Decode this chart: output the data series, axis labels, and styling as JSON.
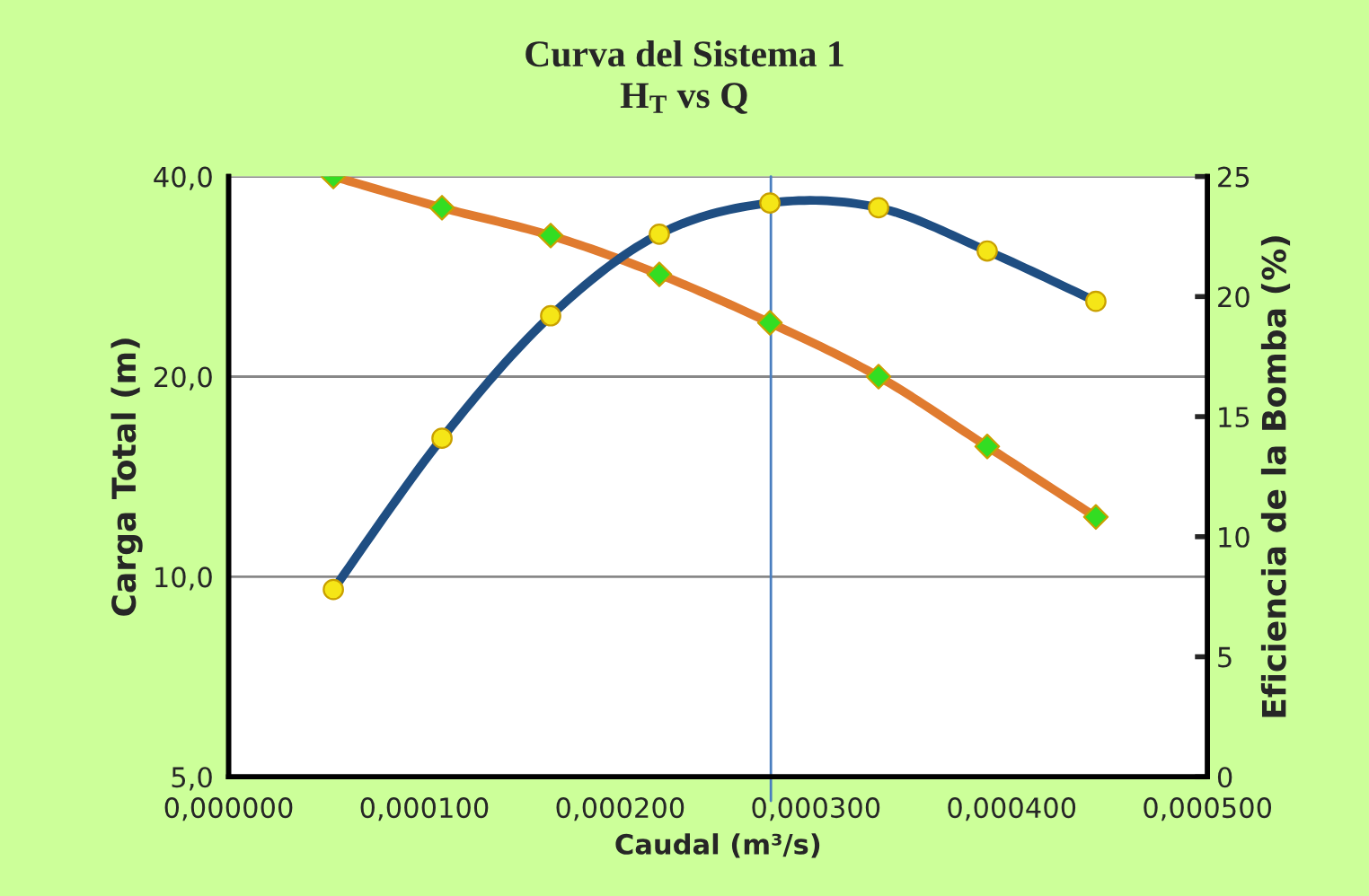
{
  "chart_data": {
    "type": "line",
    "title": "Curva del Sistema 1\nH$_{T}$ vs Q",
    "xlabel": "Caudal (m³/s)",
    "ylabel": "Carga Total (m)",
    "y2label": "Eficiencia de la Bomba (%)",
    "x": [
      5.35e-05,
      0.000109,
      0.0001645,
      0.00022,
      0.0002765,
      0.000332,
      0.0003875,
      0.000443
    ],
    "series": [
      {
        "color": "#e07b2f",
        "marker": "diamond",
        "values": [
          40.0,
          35.9,
          32.6,
          28.5,
          24.1,
          20.0,
          15.7,
          12.3
        ]
      },
      {
        "color": "#1f4e82",
        "marker": "circle",
        "axis": "y2",
        "values": [
          7.8,
          14.1,
          19.2,
          22.6,
          23.9,
          23.7,
          21.9,
          19.8
        ]
      }
    ],
    "xlim": [
      0,
      0.0005
    ],
    "xticks": [
      {
        "value": 0,
        "label": "0,000000"
      },
      {
        "value": 0.0001,
        "label": "0,000100"
      },
      {
        "value": 0.0002,
        "label": "0,000200"
      },
      {
        "value": 0.0003,
        "label": "0,000300"
      },
      {
        "value": 0.0004,
        "label": "0,000400"
      },
      {
        "value": 0.0005,
        "label": "0,000500"
      }
    ],
    "log": "y",
    "ylim": [
      5,
      40
    ],
    "yticks": [
      {
        "value": 5,
        "label": "5,0"
      },
      {
        "value": 10,
        "label": "10,0"
      },
      {
        "value": 20,
        "label": "20,0"
      },
      {
        "value": 40,
        "label": "40,0"
      }
    ],
    "y2lim": [
      0,
      25
    ],
    "y2ticks": [
      0,
      5,
      10,
      15,
      20,
      25
    ],
    "ref_lines": [
      {
        "axis": "x",
        "value": 0.000277,
        "color": "#4a7ebf"
      }
    ],
    "grid": "y",
    "legend": false,
    "line_style": "solid"
  }
}
